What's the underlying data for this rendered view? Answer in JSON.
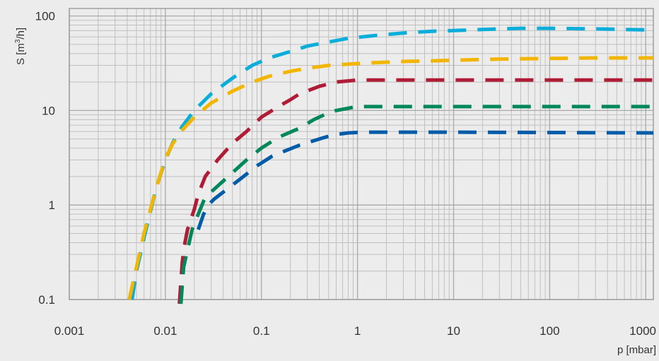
{
  "chart_data": {
    "type": "line",
    "xscale": "log",
    "yscale": "log",
    "xlim": [
      0.001,
      1200
    ],
    "ylim": [
      0.1,
      120
    ],
    "grid": true,
    "line_style": "dashed",
    "x_ticks": [
      {
        "value": 0.001,
        "label": "0.001"
      },
      {
        "value": 0.01,
        "label": "0.01"
      },
      {
        "value": 0.1,
        "label": "0.1"
      },
      {
        "value": 1,
        "label": "1"
      },
      {
        "value": 10,
        "label": "10"
      },
      {
        "value": 100,
        "label": "100"
      },
      {
        "value": 1000,
        "label": "1000"
      }
    ],
    "y_ticks": [
      {
        "value": 0.1,
        "label": "0.1"
      },
      {
        "value": 1,
        "label": "1"
      },
      {
        "value": 10,
        "label": "10"
      },
      {
        "value": 100,
        "label": "100"
      }
    ],
    "xlabel": "p [mbar]",
    "ylabel": {
      "prefix": "S [m",
      "sup": "3",
      "suffix": "/h]"
    },
    "series": [
      {
        "color": "#0aaed8",
        "points": [
          [
            0.0045,
            0.1
          ],
          [
            0.005,
            0.2
          ],
          [
            0.006,
            0.45
          ],
          [
            0.008,
            1.5
          ],
          [
            0.01,
            3
          ],
          [
            0.012,
            4.6
          ],
          [
            0.015,
            6.8
          ],
          [
            0.02,
            10
          ],
          [
            0.03,
            15
          ],
          [
            0.05,
            22
          ],
          [
            0.08,
            30
          ],
          [
            0.12,
            36
          ],
          [
            0.2,
            42
          ],
          [
            0.3,
            48
          ],
          [
            0.5,
            53
          ],
          [
            0.8,
            58
          ],
          [
            1.5,
            62
          ],
          [
            3,
            66
          ],
          [
            6,
            69
          ],
          [
            10,
            70
          ],
          [
            20,
            72
          ],
          [
            50,
            74
          ],
          [
            100,
            74
          ],
          [
            300,
            73
          ],
          [
            1200,
            71
          ]
        ]
      },
      {
        "color": "#f2b500",
        "points": [
          [
            0.0042,
            0.1
          ],
          [
            0.005,
            0.22
          ],
          [
            0.006,
            0.5
          ],
          [
            0.008,
            1.5
          ],
          [
            0.01,
            3.1
          ],
          [
            0.012,
            4.5
          ],
          [
            0.015,
            6.2
          ],
          [
            0.02,
            8.5
          ],
          [
            0.03,
            12
          ],
          [
            0.05,
            16
          ],
          [
            0.08,
            20
          ],
          [
            0.12,
            23
          ],
          [
            0.2,
            26
          ],
          [
            0.3,
            28
          ],
          [
            0.5,
            30
          ],
          [
            0.8,
            31
          ],
          [
            1.5,
            32
          ],
          [
            3,
            33
          ],
          [
            6,
            33.5
          ],
          [
            10,
            34
          ],
          [
            30,
            35
          ],
          [
            100,
            35.5
          ],
          [
            300,
            36
          ],
          [
            1200,
            36
          ]
        ]
      },
      {
        "color": "#b01b35",
        "points": [
          [
            0.014,
            0.09
          ],
          [
            0.015,
            0.25
          ],
          [
            0.016,
            0.4
          ],
          [
            0.017,
            0.55
          ],
          [
            0.02,
            0.9
          ],
          [
            0.022,
            1.3
          ],
          [
            0.026,
            2
          ],
          [
            0.035,
            3
          ],
          [
            0.05,
            4.5
          ],
          [
            0.07,
            6
          ],
          [
            0.1,
            8.5
          ],
          [
            0.15,
            11
          ],
          [
            0.2,
            13
          ],
          [
            0.25,
            15
          ],
          [
            0.4,
            18
          ],
          [
            0.6,
            20
          ],
          [
            1,
            21
          ],
          [
            3,
            21
          ],
          [
            10,
            21
          ],
          [
            100,
            21
          ],
          [
            1200,
            21
          ]
        ]
      },
      {
        "color": "#00875a",
        "points": [
          [
            0.0145,
            0.09
          ],
          [
            0.0155,
            0.22
          ],
          [
            0.019,
            0.55
          ],
          [
            0.022,
            0.8
          ],
          [
            0.025,
            1.1
          ],
          [
            0.027,
            1.25
          ],
          [
            0.05,
            2.2
          ],
          [
            0.07,
            3
          ],
          [
            0.1,
            4
          ],
          [
            0.15,
            5.2
          ],
          [
            0.25,
            6.5
          ],
          [
            0.35,
            8
          ],
          [
            0.45,
            9
          ],
          [
            0.6,
            10
          ],
          [
            0.9,
            10.8
          ],
          [
            1.2,
            11
          ],
          [
            3,
            11
          ],
          [
            10,
            11
          ],
          [
            100,
            11
          ],
          [
            1200,
            11
          ]
        ]
      },
      {
        "color": "#005ca8",
        "points": [
          [
            0.022,
            0.55
          ],
          [
            0.025,
            0.8
          ],
          [
            0.028,
            1
          ],
          [
            0.032,
            1.15
          ],
          [
            0.065,
            2
          ],
          [
            0.09,
            2.6
          ],
          [
            0.13,
            3.3
          ],
          [
            0.25,
            4.3
          ],
          [
            0.4,
            5
          ],
          [
            0.55,
            5.5
          ],
          [
            0.8,
            5.8
          ],
          [
            1.2,
            5.9
          ],
          [
            3,
            5.9
          ],
          [
            10,
            5.9
          ],
          [
            100,
            5.85
          ],
          [
            1200,
            5.8
          ]
        ]
      }
    ]
  }
}
